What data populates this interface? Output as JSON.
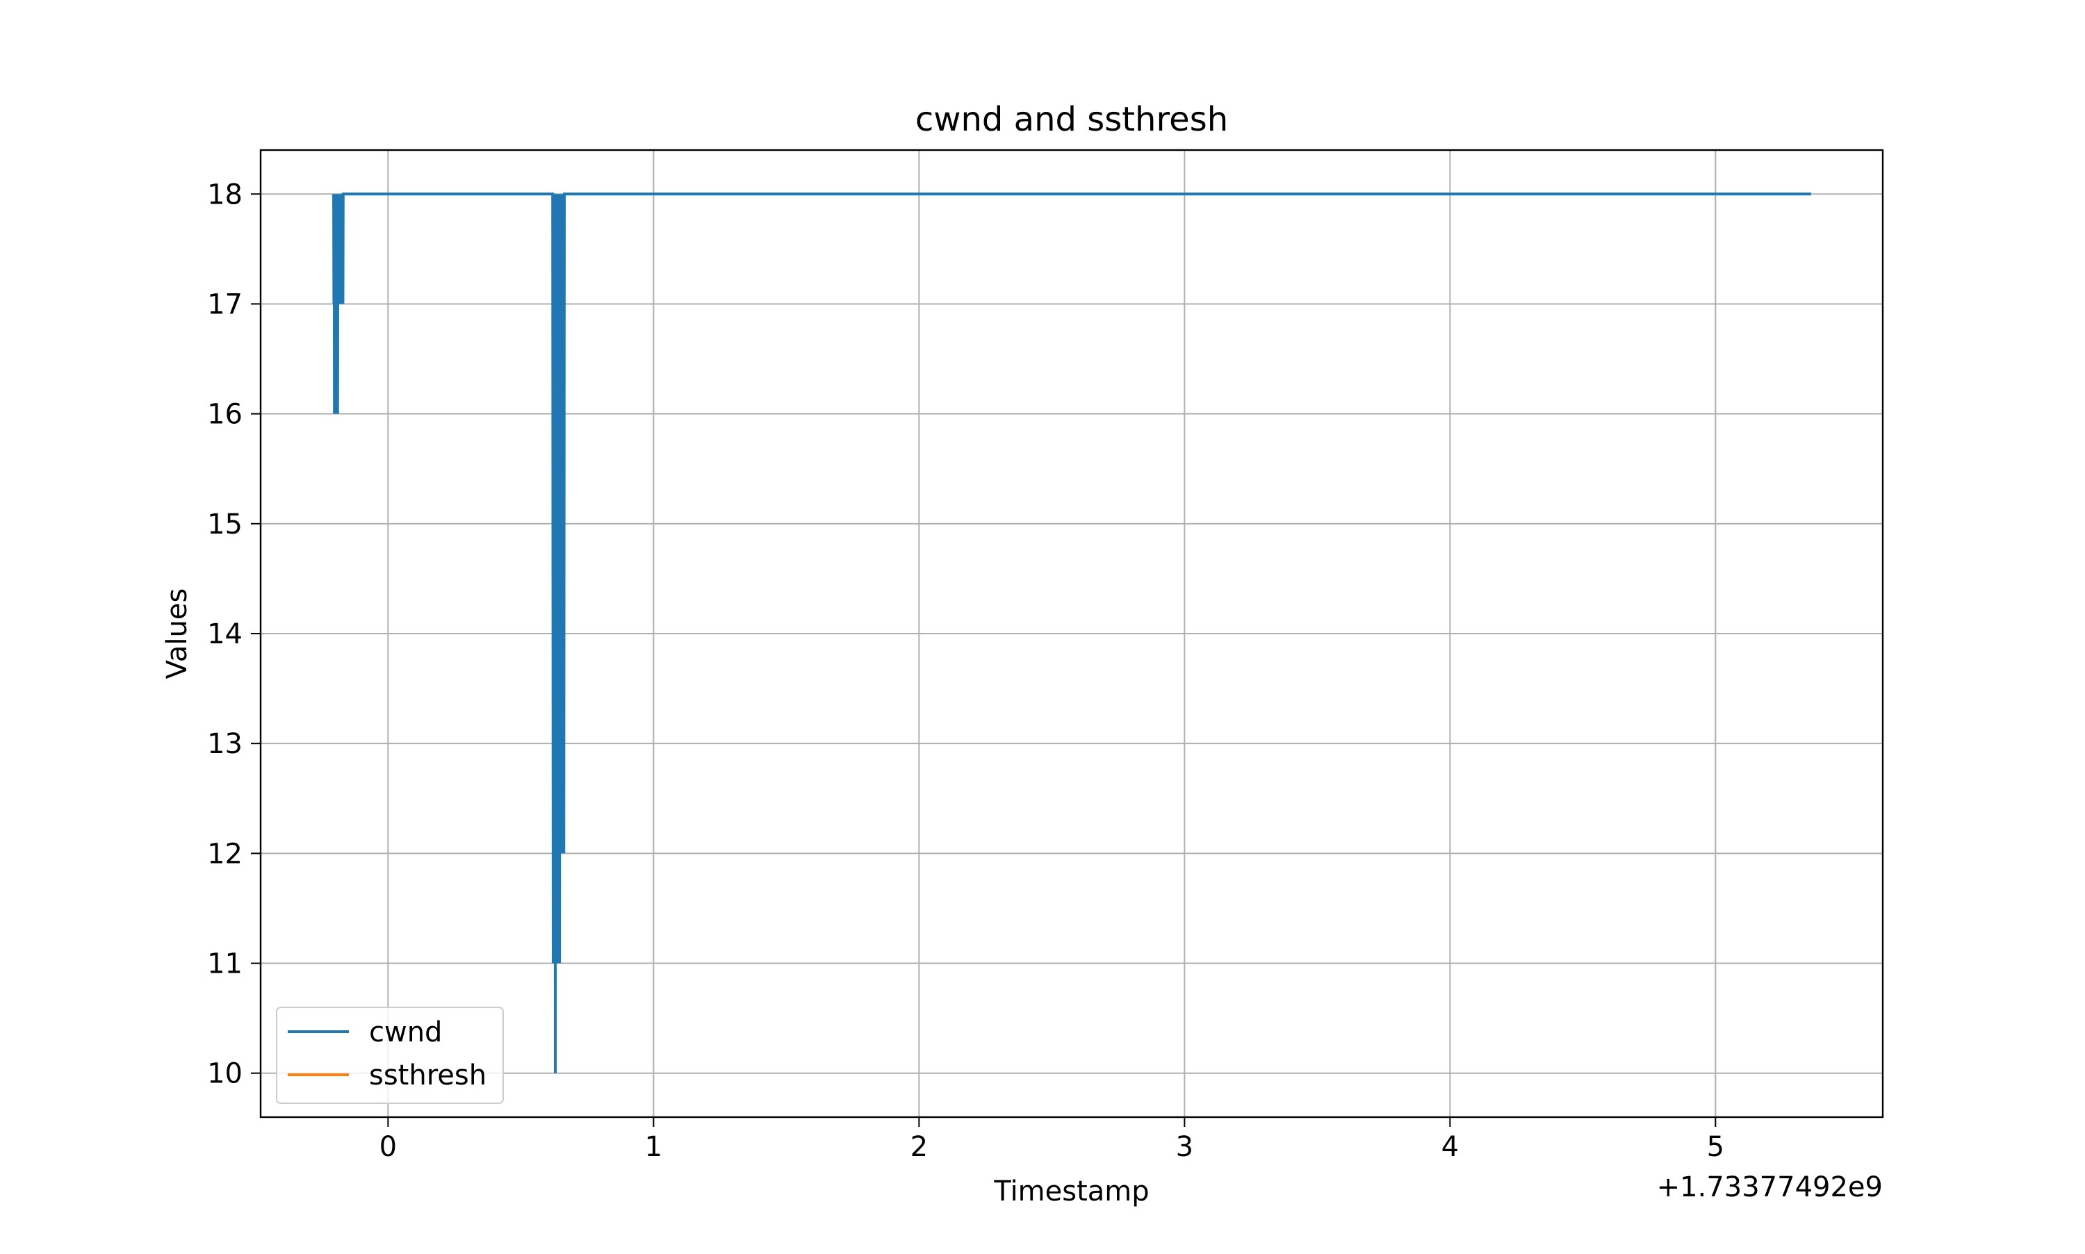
{
  "chart_data": {
    "type": "line",
    "title": "cwnd and ssthresh",
    "xlabel": "Timestamp",
    "ylabel": "Values",
    "x_offset_label": "+1.73377492e9",
    "xlim": [
      -0.48,
      5.63
    ],
    "ylim": [
      9.6,
      18.4
    ],
    "x_ticks": [
      0,
      1,
      2,
      3,
      4,
      5
    ],
    "x_tick_labels": [
      "0",
      "1",
      "2",
      "3",
      "4",
      "5"
    ],
    "y_ticks": [
      10,
      11,
      12,
      13,
      14,
      15,
      16,
      17,
      18
    ],
    "y_tick_labels": [
      "10",
      "11",
      "12",
      "13",
      "14",
      "15",
      "16",
      "17",
      "18"
    ],
    "grid": true,
    "legend_position": "lower-left",
    "series": [
      {
        "name": "cwnd",
        "color": "#1f77b4",
        "points": [
          [
            -0.205,
            18
          ],
          [
            -0.204,
            17
          ],
          [
            -0.203,
            18
          ],
          [
            -0.202,
            16
          ],
          [
            -0.201,
            18
          ],
          [
            -0.2,
            17
          ],
          [
            -0.199,
            18
          ],
          [
            -0.198,
            16
          ],
          [
            -0.197,
            18
          ],
          [
            -0.196,
            17
          ],
          [
            -0.195,
            18
          ],
          [
            -0.194,
            16
          ],
          [
            -0.193,
            18
          ],
          [
            -0.192,
            17
          ],
          [
            -0.191,
            18
          ],
          [
            -0.19,
            16
          ],
          [
            -0.189,
            18
          ],
          [
            -0.188,
            17
          ],
          [
            -0.187,
            18
          ],
          [
            -0.186,
            17
          ],
          [
            -0.185,
            18
          ],
          [
            -0.184,
            17
          ],
          [
            -0.183,
            18
          ],
          [
            -0.182,
            17
          ],
          [
            -0.181,
            18
          ],
          [
            -0.18,
            17
          ],
          [
            -0.179,
            18
          ],
          [
            -0.178,
            17
          ],
          [
            -0.177,
            18
          ],
          [
            -0.176,
            17
          ],
          [
            -0.175,
            18
          ],
          [
            -0.174,
            17
          ],
          [
            -0.173,
            18
          ],
          [
            -0.172,
            17
          ],
          [
            -0.171,
            18
          ],
          [
            -0.17,
            17
          ],
          [
            -0.169,
            18
          ],
          [
            -0.168,
            18
          ],
          [
            0.62,
            18
          ],
          [
            0.622,
            11
          ],
          [
            0.624,
            18
          ],
          [
            0.626,
            11
          ],
          [
            0.628,
            18
          ],
          [
            0.63,
            10
          ],
          [
            0.632,
            18
          ],
          [
            0.634,
            11
          ],
          [
            0.636,
            18
          ],
          [
            0.638,
            11
          ],
          [
            0.64,
            18
          ],
          [
            0.642,
            12
          ],
          [
            0.644,
            18
          ],
          [
            0.646,
            11
          ],
          [
            0.648,
            18
          ],
          [
            0.65,
            12
          ],
          [
            0.652,
            18
          ],
          [
            0.654,
            12
          ],
          [
            0.656,
            18
          ],
          [
            0.658,
            12
          ],
          [
            0.66,
            18
          ],
          [
            0.662,
            12
          ],
          [
            0.664,
            18
          ],
          [
            0.666,
            18
          ],
          [
            5.36,
            18
          ]
        ]
      },
      {
        "name": "ssthresh",
        "color": "#ff7f0e",
        "points": []
      }
    ]
  }
}
